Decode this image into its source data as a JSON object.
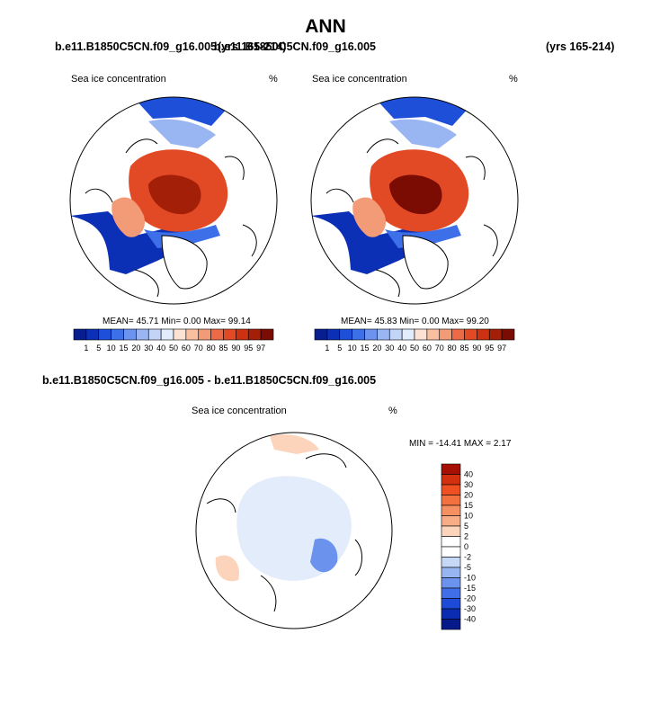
{
  "header": {
    "title": "ANN",
    "left_case": "b.e11.B1850C5CN.f09_g16.005",
    "left_years": "(yrs 165-214)",
    "mid_case": "b.e11.B1850C5CN.f09_g16.005",
    "right_years": "(yrs 165-214)"
  },
  "panels": [
    {
      "title": "Sea ice concentration",
      "unit": "%",
      "stats": "MEAN=  45.71  Min=   0.00  Max=  99.14"
    },
    {
      "title": "Sea ice concentration",
      "unit": "%",
      "stats": "MEAN=  45.83  Min=   0.00  Max=  99.20"
    }
  ],
  "diff": {
    "case_label": "b.e11.B1850C5CN.f09_g16.005 - b.e11.B1850C5CN.f09_g16.005",
    "title": "Sea ice concentration",
    "unit": "%",
    "stats": "MIN = -14.41 MAX =   2.17"
  },
  "chart_data": [
    {
      "type": "heatmap",
      "projection": "north-polar-stereographic",
      "title": "Sea ice concentration",
      "units": "%",
      "mean": 45.71,
      "min": 0.0,
      "max": 99.14,
      "colorbar_levels": [
        "1",
        "5",
        "10",
        "15",
        "20",
        "30",
        "40",
        "50",
        "60",
        "70",
        "80",
        "85",
        "90",
        "95",
        "97"
      ],
      "colorbar_colors": [
        "#081d8f",
        "#0b2fb5",
        "#1e4fd8",
        "#3d6fe8",
        "#6b93ef",
        "#9ab6f2",
        "#c3d5f6",
        "#e3ecfa",
        "#fbe2d3",
        "#f8bfa0",
        "#f39a76",
        "#ec6a45",
        "#e24a25",
        "#cc3212",
        "#a41f08",
        "#7a0c03"
      ],
      "legend_position": "bottom"
    },
    {
      "type": "heatmap",
      "projection": "north-polar-stereographic",
      "title": "Sea ice concentration",
      "units": "%",
      "mean": 45.83,
      "min": 0.0,
      "max": 99.2,
      "colorbar_levels": [
        "1",
        "5",
        "10",
        "15",
        "20",
        "30",
        "40",
        "50",
        "60",
        "70",
        "80",
        "85",
        "90",
        "95",
        "97"
      ],
      "colorbar_colors": [
        "#081d8f",
        "#0b2fb5",
        "#1e4fd8",
        "#3d6fe8",
        "#6b93ef",
        "#9ab6f2",
        "#c3d5f6",
        "#e3ecfa",
        "#fbe2d3",
        "#f8bfa0",
        "#f39a76",
        "#ec6a45",
        "#e24a25",
        "#cc3212",
        "#a41f08",
        "#7a0c03"
      ],
      "legend_position": "bottom"
    },
    {
      "type": "heatmap",
      "projection": "north-polar-stereographic",
      "title": "Sea ice concentration",
      "units": "%",
      "min": -14.41,
      "max": 2.17,
      "colorbar_levels": [
        "40",
        "30",
        "20",
        "15",
        "10",
        "5",
        "2",
        "0",
        "-2",
        "-5",
        "-10",
        "-15",
        "-20",
        "-30",
        "-40"
      ],
      "colorbar_colors": [
        "#a50f04",
        "#d3300f",
        "#ee5022",
        "#f3703f",
        "#f68f62",
        "#f9ad86",
        "#fcd3bb",
        "#ffffff",
        "#ffffff",
        "#c5d8f7",
        "#97b6f1",
        "#6b93ee",
        "#3f6ee8",
        "#1d4ad6",
        "#0b2bb0",
        "#071a8a"
      ],
      "legend_position": "right"
    }
  ]
}
